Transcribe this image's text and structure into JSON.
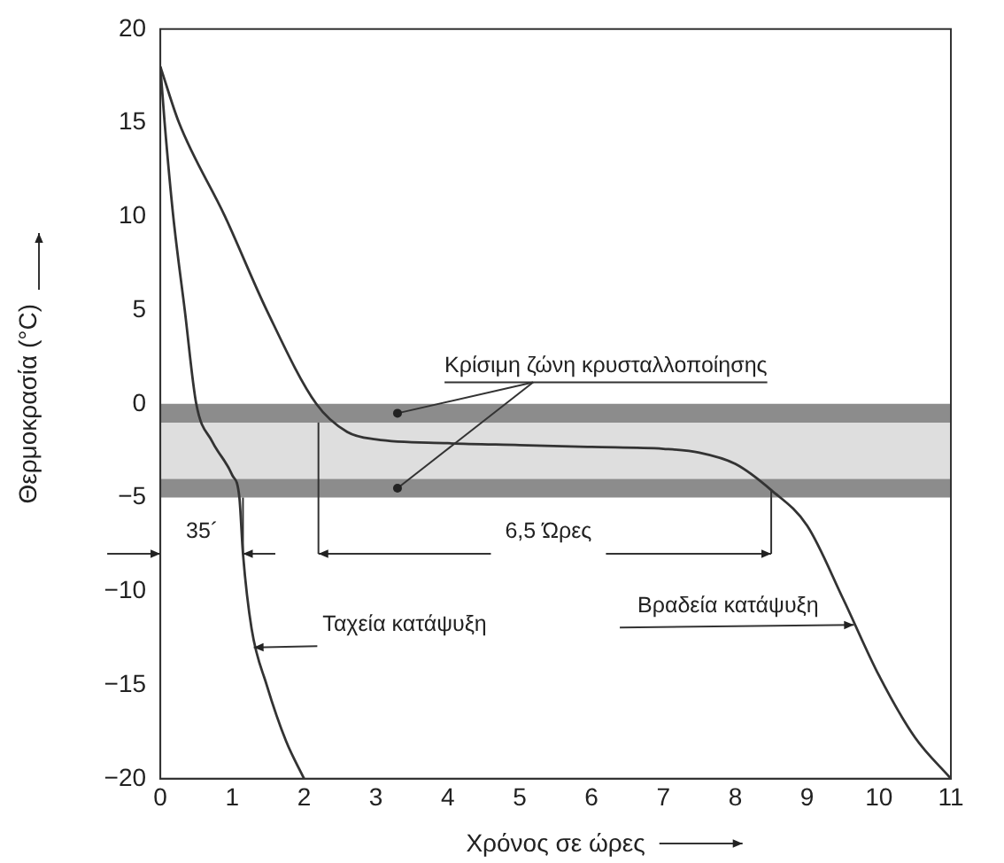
{
  "chart_data": {
    "type": "line",
    "xlabel": "Χρόνος σε ώρες",
    "ylabel": "Θερμοκρασία (°C)",
    "xlim": [
      0,
      11
    ],
    "xticks": [
      0,
      1,
      2,
      3,
      4,
      5,
      6,
      7,
      8,
      9,
      10,
      11
    ],
    "ylim": [
      -20,
      20
    ],
    "yticks": [
      -20,
      -15,
      -10,
      -5,
      0,
      5,
      10,
      15,
      20
    ],
    "grid": false,
    "legend": false,
    "marker": "none",
    "line_style": "solid",
    "series": [
      {
        "color": "#333333",
        "x": [
          0,
          0.06,
          0.18,
          0.34,
          0.5,
          0.72,
          1.0,
          1.1,
          1.15,
          1.27,
          1.48,
          1.75,
          2.0
        ],
        "values": [
          18,
          15,
          10,
          5,
          0,
          -2,
          -3.8,
          -5,
          -8,
          -12,
          -15,
          -18,
          -20
        ]
      },
      {
        "color": "#333333",
        "x": [
          0,
          0.26,
          0.9,
          1.48,
          2.17,
          2.6,
          3.0,
          4,
          5,
          6,
          7,
          7.5,
          8,
          8.5,
          9,
          9.5,
          10,
          10.5,
          11
        ],
        "values": [
          18,
          15,
          10,
          5,
          0,
          -1.5,
          -1.9,
          -2.1,
          -2.2,
          -2.3,
          -2.4,
          -2.6,
          -3.2,
          -4.6,
          -6.5,
          -10.4,
          -14.5,
          -17.8,
          -20
        ]
      }
    ],
    "bands": [
      {
        "axis": "y",
        "from": 0,
        "to": -1,
        "color": "#8c8c8c",
        "label": null
      },
      {
        "axis": "y",
        "from": -1,
        "to": -4,
        "color": "#dedede",
        "label": null
      },
      {
        "axis": "y",
        "from": -4,
        "to": -5,
        "color": "#8c8c8c",
        "label": null
      }
    ],
    "annotations": [
      "Κρίσιμη ζώνη κρυσταλλοποίησης",
      "35´",
      "6,5 Ώρες",
      {
        "text": "Ταχεία κατάψυξη",
        "x": 1.3,
        "y": -13
      },
      {
        "text": "Βραδεία κατάψυξη",
        "x": 9.65,
        "y": -11.8
      }
    ]
  }
}
